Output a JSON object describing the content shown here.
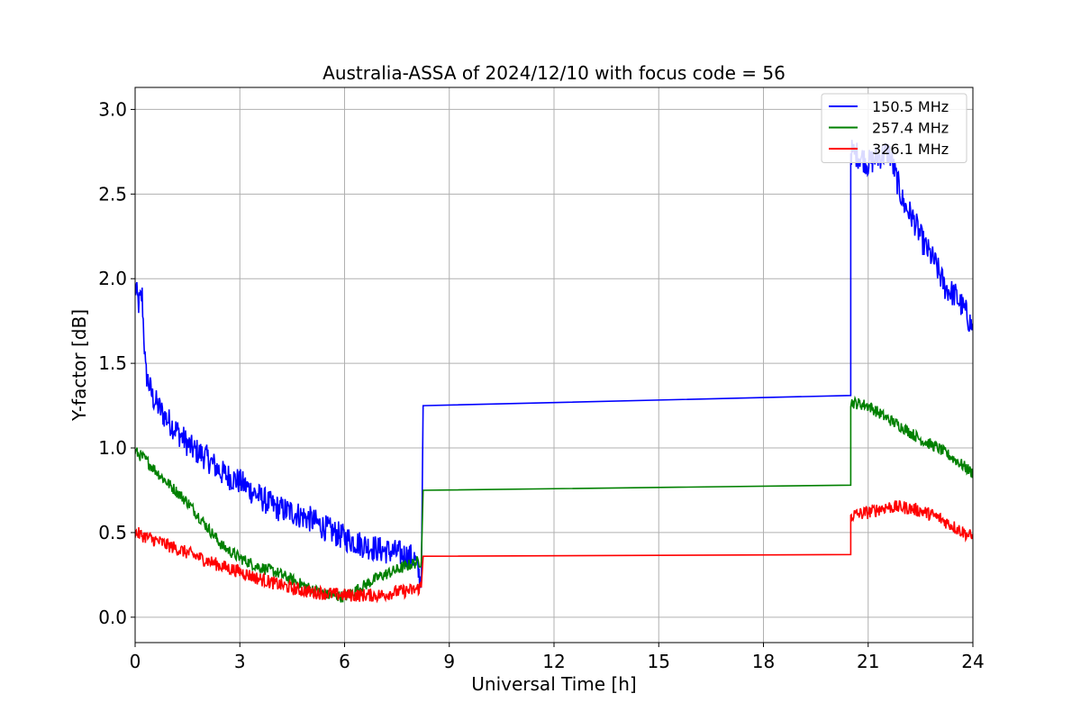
{
  "chart_data": {
    "type": "line",
    "title": "Australia-ASSA of 2024/12/10 with focus code = 56",
    "xlabel": "Universal Time [h]",
    "ylabel": "Y-factor [dB]",
    "xlim": [
      0,
      24
    ],
    "ylim": [
      -0.15,
      3.13
    ],
    "xticks": [
      0,
      3,
      6,
      9,
      12,
      15,
      18,
      21,
      24
    ],
    "xtick_labels": [
      "0",
      "3",
      "6",
      "9",
      "12",
      "15",
      "18",
      "21",
      "24"
    ],
    "yticks": [
      0.0,
      0.5,
      1.0,
      1.5,
      2.0,
      2.5,
      3.0
    ],
    "ytick_labels": [
      "0.0",
      "0.5",
      "1.0",
      "1.5",
      "2.0",
      "2.5",
      "3.0"
    ],
    "grid": true,
    "legend_position": "top-right",
    "series": [
      {
        "name": "150.5 MHz",
        "color": "#0000ff",
        "x": [
          0.0,
          0.1,
          0.2,
          0.3,
          0.5,
          0.8,
          1.2,
          1.6,
          2.0,
          2.5,
          3.0,
          3.5,
          4.0,
          4.5,
          5.0,
          5.5,
          6.0,
          6.5,
          7.0,
          7.5,
          8.0,
          8.2,
          8.25,
          20.5,
          20.5,
          20.8,
          21.0,
          21.3,
          21.6,
          21.8,
          22.0,
          22.3,
          22.6,
          22.9,
          23.2,
          23.5,
          23.8,
          24.0
        ],
        "y": [
          1.95,
          1.85,
          1.9,
          1.45,
          1.3,
          1.2,
          1.1,
          1.0,
          0.95,
          0.85,
          0.8,
          0.72,
          0.65,
          0.62,
          0.58,
          0.52,
          0.47,
          0.43,
          0.4,
          0.38,
          0.35,
          0.2,
          1.25,
          1.31,
          2.75,
          2.72,
          2.68,
          2.72,
          2.75,
          2.6,
          2.45,
          2.35,
          2.2,
          2.1,
          1.95,
          1.9,
          1.8,
          1.7
        ],
        "noise": 0.08
      },
      {
        "name": "257.4 MHz",
        "color": "#008000",
        "x": [
          0.0,
          0.3,
          0.8,
          1.5,
          2.0,
          2.5,
          3.0,
          3.5,
          4.0,
          4.5,
          5.0,
          5.5,
          6.0,
          6.5,
          7.0,
          7.5,
          8.0,
          8.2,
          8.25,
          20.5,
          20.5,
          21.0,
          21.5,
          22.0,
          22.5,
          23.0,
          23.5,
          24.0
        ],
        "y": [
          0.98,
          0.93,
          0.82,
          0.68,
          0.55,
          0.42,
          0.35,
          0.3,
          0.27,
          0.22,
          0.17,
          0.13,
          0.12,
          0.18,
          0.24,
          0.28,
          0.32,
          0.33,
          0.75,
          0.78,
          1.27,
          1.25,
          1.18,
          1.12,
          1.05,
          1.0,
          0.93,
          0.85
        ],
        "noise": 0.035
      },
      {
        "name": "326.1 MHz",
        "color": "#ff0000",
        "x": [
          0.0,
          0.5,
          1.0,
          1.5,
          2.0,
          2.5,
          3.0,
          3.5,
          4.0,
          4.5,
          5.0,
          5.5,
          6.0,
          6.5,
          7.0,
          7.5,
          8.0,
          8.2,
          8.25,
          20.5,
          20.5,
          21.0,
          21.5,
          22.0,
          22.5,
          23.0,
          23.5,
          24.0
        ],
        "y": [
          0.5,
          0.46,
          0.42,
          0.38,
          0.34,
          0.3,
          0.27,
          0.23,
          0.2,
          0.17,
          0.15,
          0.14,
          0.13,
          0.13,
          0.13,
          0.15,
          0.16,
          0.18,
          0.36,
          0.37,
          0.6,
          0.62,
          0.65,
          0.65,
          0.63,
          0.59,
          0.53,
          0.47
        ],
        "noise": 0.04
      }
    ]
  }
}
